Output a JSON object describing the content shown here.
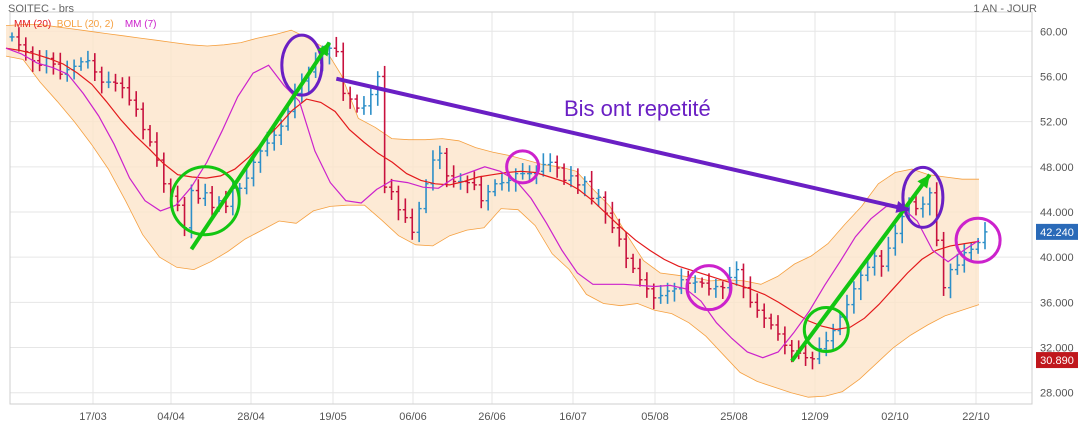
{
  "header": {
    "symbol": "SOITEC - brs",
    "period": "1 AN - JOUR",
    "legend": [
      {
        "label": "MM (20)",
        "color": "#e31a1c"
      },
      {
        "label": "BOLL (20, 2)",
        "color": "#f5a040"
      },
      {
        "label": "MM (7)",
        "color": "#cc22cc"
      }
    ]
  },
  "annotation": {
    "text": "Bis ont repetité",
    "color": "#6a1fc4"
  },
  "badges": {
    "last": "42.240",
    "low": "30.890",
    "last_color": "#2a6ab8",
    "low_color": "#c0171c"
  },
  "chart_data": {
    "type": "ohlc",
    "ylim": [
      27,
      61
    ],
    "y_ticks": [
      "28.000",
      "32.000",
      "36.000",
      "40.000",
      "44.000",
      "48.000",
      "52.00",
      "56.00",
      "60.00"
    ],
    "x_labels": [
      "17/03",
      "04/04",
      "28/04",
      "19/05",
      "06/06",
      "26/06",
      "16/07",
      "05/08",
      "25/08",
      "12/09",
      "02/10",
      "22/10"
    ],
    "close_trajectory": [
      59.5,
      58.8,
      58.2,
      57.4,
      57.0,
      57.6,
      57.1,
      56.2,
      56.6,
      56.9,
      57.3,
      57.4,
      56.4,
      55.5,
      55.5,
      55.4,
      55.0,
      53.9,
      53.1,
      51.3,
      50.2,
      48.6,
      46.5,
      45.4,
      44.6,
      42.6,
      45.9,
      45.2,
      45.7,
      44.4,
      45.0,
      44.5,
      46.1,
      46.1,
      47.0,
      48.4,
      49.4,
      50.1,
      50.8,
      51.6,
      52.9,
      54.5,
      55.6,
      56.4,
      57.2,
      58.0,
      58.5,
      58.2,
      54.5,
      54.0,
      53.2,
      53.4,
      54.4,
      56.0,
      46.2,
      45.8,
      44.2,
      43.5,
      42.2,
      44.3,
      46.5,
      48.6,
      49.2,
      47.2,
      46.7,
      46.7,
      46.6,
      46.4,
      45.0,
      45.8,
      46.5,
      46.6,
      46.8,
      47.4,
      47.4,
      47.4,
      47.6,
      48.2,
      48.4,
      47.9,
      46.8,
      47.2,
      46.4,
      46.7,
      45.2,
      45.3,
      43.9,
      42.6,
      41.6,
      39.9,
      39.0,
      38.0,
      37.2,
      36.4,
      36.6,
      37.0,
      37.2,
      38.0,
      37.7,
      37.8,
      37.7,
      37.2,
      37.4,
      37.3,
      38.2,
      38.9,
      37.3,
      36.0,
      35.3,
      34.6,
      34.0,
      33.2,
      32.2,
      31.7,
      31.5,
      31.1,
      31.0,
      31.9,
      32.6,
      33.5,
      34.7,
      35.8,
      37.2,
      38.4,
      39.1,
      40.1,
      39.2,
      40.8,
      42.1,
      43.6,
      44.9,
      44.3,
      44.7,
      45.7,
      41.5,
      37.3,
      38.9,
      39.3,
      40.4,
      40.7,
      41.3,
      42.24
    ],
    "series": [
      {
        "name": "MM (20)",
        "color": "#e31a1c",
        "values": [
          58.5,
          58.3,
          58.0,
          57.6,
          57.1,
          56.3,
          55.3,
          53.8,
          52.2,
          50.8,
          49.6,
          48.3,
          47.3,
          47.1,
          47.0,
          47.2,
          47.8,
          48.9,
          50.3,
          51.6,
          53.0,
          54.0,
          53.7,
          52.9,
          51.3,
          50.2,
          49.2,
          48.4,
          47.4,
          46.8,
          46.5,
          46.4,
          46.7,
          47.1,
          47.3,
          47.5,
          47.6,
          47.5,
          47.1,
          46.7,
          46.0,
          45.0,
          43.8,
          42.6,
          41.5,
          40.6,
          39.8,
          39.2,
          38.8,
          38.4,
          38.0,
          37.6,
          37.2,
          36.7,
          36.0,
          35.2,
          34.4,
          33.9,
          33.6,
          33.8,
          34.6,
          35.8,
          37.2,
          38.6,
          39.8,
          40.6,
          41.0,
          41.2,
          41.4
        ]
      },
      {
        "name": "MM (7)",
        "color": "#cc22cc",
        "values": [
          58.5,
          58.0,
          57.2,
          56.8,
          56.2,
          54.5,
          52.5,
          50.0,
          47.0,
          45.0,
          44.1,
          44.6,
          46.2,
          48.4,
          51.2,
          54.2,
          56.3,
          57.0,
          55.2,
          53.8,
          49.4,
          46.6,
          45.0,
          44.8,
          46.0,
          46.8,
          46.6,
          46.2,
          46.1,
          47.0,
          47.5,
          48.0,
          47.6,
          46.8,
          45.2,
          43.0,
          40.6,
          38.6,
          37.6,
          37.6,
          37.6,
          37.5,
          37.4,
          37.5,
          37.2,
          36.1,
          34.2,
          32.8,
          31.6,
          31.1,
          31.6,
          33.3,
          35.2,
          37.5,
          39.6,
          41.8,
          43.4,
          44.5,
          44.4,
          43.2,
          40.6,
          39.6,
          40.6,
          41.5
        ]
      },
      {
        "name": "BOLL upper",
        "color": "#f5a040",
        "values": [
          60.5,
          60.6,
          60.6,
          60.4,
          60.2,
          60.0,
          59.8,
          59.6,
          59.4,
          59.2,
          59.0,
          58.8,
          58.7,
          58.8,
          59.0,
          59.4,
          59.7,
          60.1,
          59.4,
          58.5,
          56.1,
          52.3,
          51.5,
          50.5,
          50.4,
          50.4,
          50.5,
          50.3,
          49.7,
          49.3,
          49.0,
          48.6,
          48.2,
          48.0,
          47.6,
          46.0,
          44.5,
          42.0,
          39.7,
          38.6,
          38.4,
          38.2,
          37.9,
          38.0,
          37.9,
          37.6,
          38.3,
          39.4,
          40.1,
          41.2,
          42.9,
          44.5,
          46.5,
          47.5,
          47.8,
          47.3,
          47.1,
          46.9,
          46.9
        ]
      },
      {
        "name": "BOLL lower",
        "color": "#f5a040",
        "values": [
          57.8,
          57.5,
          55.5,
          53.8,
          52.0,
          50.0,
          47.8,
          45.0,
          42.0,
          40.0,
          39.1,
          38.9,
          39.6,
          40.5,
          41.6,
          42.4,
          43.2,
          43.0,
          44.1,
          44.5,
          44.6,
          44.6,
          43.3,
          41.9,
          41.1,
          41.0,
          41.9,
          42.4,
          42.6,
          44.3,
          44.2,
          42.8,
          40.3,
          38.9,
          36.7,
          35.9,
          35.7,
          35.9,
          35.3,
          35.0,
          34.2,
          33.0,
          31.4,
          29.8,
          29.0,
          28.5,
          28.0,
          27.6,
          27.7,
          28.1,
          29.2,
          30.6,
          32.0,
          33.1,
          34.0,
          34.8,
          35.3,
          35.8
        ]
      }
    ],
    "highlights": [
      {
        "shape": "circle",
        "color": "#12c612",
        "x_index": 28,
        "y": 45.0
      },
      {
        "shape": "circle",
        "color": "#12c612",
        "x_index": 118,
        "y": 33.6
      },
      {
        "shape": "ellipse",
        "color": "#6a1fc4",
        "x_index": 42,
        "y": 57.0
      },
      {
        "shape": "ellipse",
        "color": "#6a1fc4",
        "x_index": 132,
        "y": 45.3
      },
      {
        "shape": "circle",
        "color": "#cc22cc",
        "x_index": 74,
        "y": 48.0
      },
      {
        "shape": "circle",
        "color": "#cc22cc",
        "x_index": 101,
        "y": 37.3
      },
      {
        "shape": "circle",
        "color": "#cc22cc",
        "x_index": 140,
        "y": 41.5
      }
    ],
    "arrows": [
      {
        "color": "#12c612",
        "from": {
          "x_index": 26,
          "y": 40.7
        },
        "to": {
          "x_index": 46,
          "y": 59.0
        }
      },
      {
        "color": "#12c612",
        "from": {
          "x_index": 113,
          "y": 30.8
        },
        "to": {
          "x_index": 133,
          "y": 47.3
        }
      },
      {
        "color": "#6a1fc4",
        "from": {
          "x_index": 47,
          "y": 55.8
        },
        "to": {
          "x_index": 130,
          "y": 44.2
        }
      }
    ]
  }
}
